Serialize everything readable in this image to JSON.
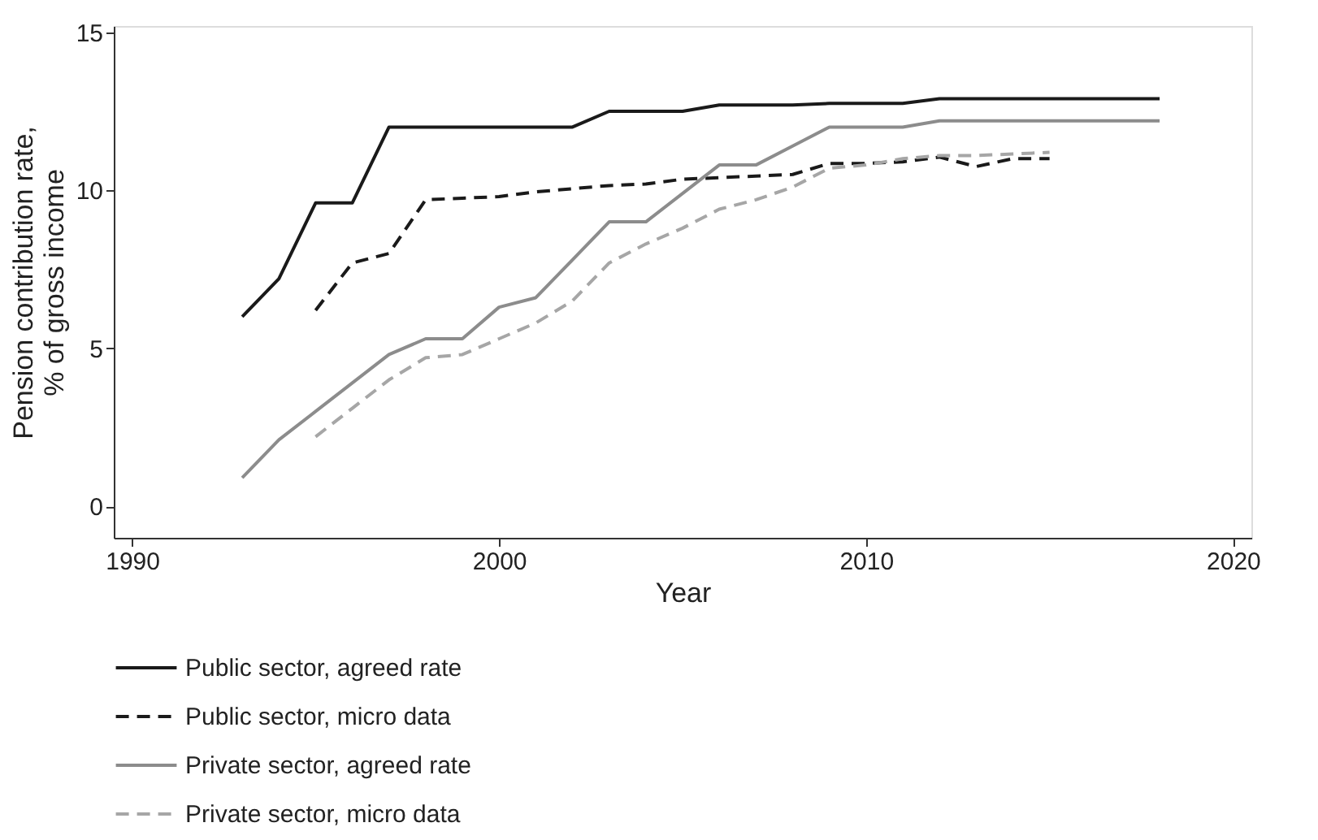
{
  "chart_data": {
    "type": "line",
    "xlabel": "Year",
    "ylabel": "Pension contribution rate,\n% of gross income",
    "xlim": [
      1989.5,
      2020.5
    ],
    "xticks": [
      1990,
      2000,
      2010,
      2020
    ],
    "ylim": [
      -1,
      15.2
    ],
    "yticks": [
      0,
      5,
      10,
      15
    ],
    "grid": false,
    "legend": "bottom",
    "marker": "none",
    "series": [
      {
        "name": "Public sector, agreed rate",
        "color": "#1a1a1a",
        "line_style": "solid",
        "x": [
          1993,
          1994,
          1995,
          1996,
          1997,
          1998,
          1999,
          2000,
          2001,
          2002,
          2003,
          2004,
          2005,
          2006,
          2007,
          2008,
          2009,
          2010,
          2011,
          2012,
          2013,
          2014,
          2015,
          2016,
          2017,
          2018
        ],
        "values": [
          6.0,
          7.2,
          9.6,
          9.6,
          12.0,
          12.0,
          12.0,
          12.0,
          12.0,
          12.0,
          12.5,
          12.5,
          12.5,
          12.7,
          12.7,
          12.7,
          12.75,
          12.75,
          12.75,
          12.9,
          12.9,
          12.9,
          12.9,
          12.9,
          12.9,
          12.9
        ]
      },
      {
        "name": "Public sector, micro data",
        "color": "#1a1a1a",
        "line_style": "dashed",
        "x": [
          1995,
          1996,
          1997,
          1998,
          1999,
          2000,
          2001,
          2002,
          2003,
          2004,
          2005,
          2006,
          2007,
          2008,
          2009,
          2010,
          2011,
          2012,
          2013,
          2014,
          2015
        ],
        "values": [
          6.2,
          7.7,
          8.0,
          9.7,
          9.75,
          9.8,
          9.95,
          10.05,
          10.15,
          10.2,
          10.35,
          10.4,
          10.45,
          10.5,
          10.85,
          10.85,
          10.9,
          11.05,
          10.75,
          11.0,
          11.0
        ]
      },
      {
        "name": "Private sector, agreed rate",
        "color": "#8c8c8c",
        "line_style": "solid",
        "x": [
          1993,
          1994,
          1995,
          1996,
          1997,
          1998,
          1999,
          2000,
          2001,
          2002,
          2003,
          2004,
          2005,
          2006,
          2007,
          2008,
          2009,
          2010,
          2011,
          2012,
          2013,
          2014,
          2015,
          2016,
          2017,
          2018
        ],
        "values": [
          0.9,
          2.1,
          3.0,
          3.9,
          4.8,
          5.3,
          5.3,
          6.3,
          6.6,
          7.8,
          9.0,
          9.0,
          9.9,
          10.8,
          10.8,
          11.4,
          12.0,
          12.0,
          12.0,
          12.2,
          12.2,
          12.2,
          12.2,
          12.2,
          12.2,
          12.2
        ]
      },
      {
        "name": "Private sector, micro data",
        "color": "#a6a6a6",
        "line_style": "dashed",
        "x": [
          1995,
          1996,
          1997,
          1998,
          1999,
          2000,
          2001,
          2002,
          2003,
          2004,
          2005,
          2006,
          2007,
          2008,
          2009,
          2010,
          2011,
          2012,
          2013,
          2014,
          2015
        ],
        "values": [
          2.2,
          3.1,
          4.0,
          4.7,
          4.8,
          5.3,
          5.8,
          6.5,
          7.7,
          8.3,
          8.8,
          9.4,
          9.7,
          10.1,
          10.7,
          10.8,
          11.0,
          11.1,
          11.1,
          11.15,
          11.2
        ]
      }
    ]
  }
}
